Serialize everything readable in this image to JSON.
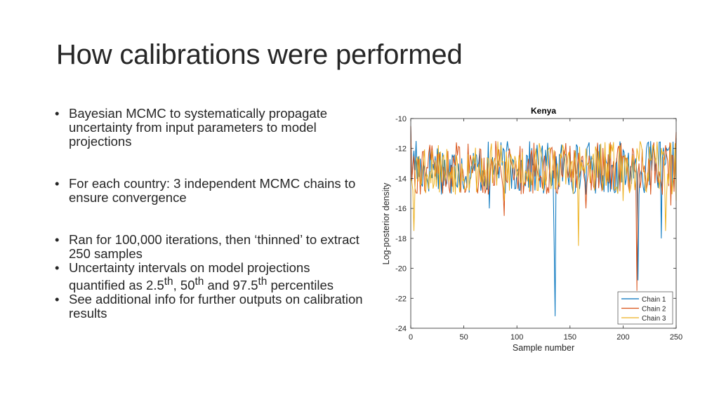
{
  "slide": {
    "title": "How calibrations were performed",
    "bullets": [
      {
        "text": "Bayesian MCMC to systematically propagate uncertainty from input parameters to model projections"
      },
      {
        "text": "For each country: 3 independent MCMC chains to ensure convergence"
      },
      {
        "text": "Ran for 100,000 iterations, then ‘thinned’ to extract 250 samples"
      },
      {
        "parts": [
          "Uncertainty intervals on model projections quantified as 2.5",
          "th",
          ", 50",
          "th",
          " and 97.5",
          "th",
          " percentiles"
        ]
      },
      {
        "text": "See additional info for further outputs on calibration results"
      }
    ]
  },
  "chart_data": {
    "type": "line",
    "title": "Kenya",
    "xlabel": "Sample number",
    "ylabel": "Log-posterior density",
    "xlim": [
      0,
      250
    ],
    "ylim": [
      -24,
      -10
    ],
    "xticks": [
      "0",
      "50",
      "100",
      "150",
      "200",
      "250"
    ],
    "yticks": [
      "-10",
      "-12",
      "-14",
      "-16",
      "-18",
      "-20",
      "-22",
      "-24"
    ],
    "xtick_values": [
      0,
      50,
      100,
      150,
      200,
      250
    ],
    "ytick_values": [
      -10,
      -12,
      -14,
      -16,
      -18,
      -20,
      -22,
      -24
    ],
    "grid": false,
    "legend_position": "bottom-right",
    "series": [
      {
        "name": "Chain 1",
        "color": "#0072BD",
        "anchors": [
          [
            0,
            -10.5
          ],
          [
            2,
            -13
          ],
          [
            5,
            -11.5
          ],
          [
            15,
            -14
          ],
          [
            25,
            -12
          ],
          [
            33,
            -14.5
          ],
          [
            38,
            -15
          ],
          [
            45,
            -13
          ],
          [
            60,
            -13.5
          ],
          [
            74,
            -16
          ],
          [
            80,
            -13
          ],
          [
            90,
            -12.2
          ],
          [
            100,
            -13.5
          ],
          [
            110,
            -12.5
          ],
          [
            120,
            -13
          ],
          [
            125,
            -15
          ],
          [
            130,
            -13
          ],
          [
            135,
            -18
          ],
          [
            136,
            -23.2
          ],
          [
            138,
            -13.5
          ],
          [
            150,
            -12
          ],
          [
            160,
            -14
          ],
          [
            170,
            -12.5
          ],
          [
            185,
            -13
          ],
          [
            195,
            -15
          ],
          [
            204,
            -13
          ],
          [
            210,
            -14
          ],
          [
            214,
            -20.8
          ],
          [
            217,
            -13.5
          ],
          [
            222,
            -12
          ],
          [
            230,
            -13.5
          ],
          [
            236,
            -18
          ],
          [
            240,
            -13
          ],
          [
            245,
            -12
          ],
          [
            250,
            -11.3
          ]
        ]
      },
      {
        "name": "Chain 2",
        "color": "#D95319",
        "anchors": [
          [
            0,
            -10.5
          ],
          [
            3,
            -12.5
          ],
          [
            10,
            -13.5
          ],
          [
            20,
            -11.8
          ],
          [
            30,
            -15
          ],
          [
            40,
            -12.5
          ],
          [
            50,
            -14
          ],
          [
            60,
            -13
          ],
          [
            70,
            -15
          ],
          [
            80,
            -11.5
          ],
          [
            88,
            -16.5
          ],
          [
            95,
            -13
          ],
          [
            105,
            -12
          ],
          [
            115,
            -15
          ],
          [
            125,
            -13
          ],
          [
            135,
            -14
          ],
          [
            145,
            -12.5
          ],
          [
            155,
            -13.5
          ],
          [
            165,
            -16
          ],
          [
            175,
            -12.5
          ],
          [
            185,
            -14
          ],
          [
            195,
            -12
          ],
          [
            205,
            -14.5
          ],
          [
            213,
            -21.5
          ],
          [
            215,
            -13
          ],
          [
            225,
            -12.8
          ],
          [
            235,
            -14
          ],
          [
            245,
            -15.8
          ],
          [
            250,
            -10.9
          ]
        ]
      },
      {
        "name": "Chain 3",
        "color": "#EDB120",
        "anchors": [
          [
            0,
            -14
          ],
          [
            3,
            -17.5
          ],
          [
            8,
            -12.5
          ],
          [
            18,
            -13.5
          ],
          [
            28,
            -12.2
          ],
          [
            38,
            -14
          ],
          [
            48,
            -13
          ],
          [
            58,
            -12.8
          ],
          [
            68,
            -14.5
          ],
          [
            78,
            -13
          ],
          [
            88,
            -15.5
          ],
          [
            98,
            -12.5
          ],
          [
            108,
            -13.5
          ],
          [
            118,
            -12
          ],
          [
            128,
            -14
          ],
          [
            138,
            -13
          ],
          [
            148,
            -12.5
          ],
          [
            158,
            -18.5
          ],
          [
            160,
            -13.5
          ],
          [
            170,
            -12.8
          ],
          [
            180,
            -14
          ],
          [
            190,
            -12.2
          ],
          [
            200,
            -15.5
          ],
          [
            210,
            -13
          ],
          [
            220,
            -13.5
          ],
          [
            230,
            -12.5
          ],
          [
            240,
            -17.5
          ],
          [
            250,
            -15.5
          ]
        ]
      }
    ]
  }
}
